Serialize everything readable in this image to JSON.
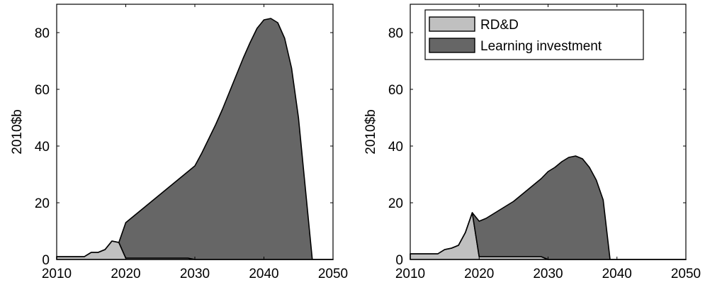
{
  "chart_data": [
    {
      "type": "area",
      "stacked": true,
      "xlim": [
        2010,
        2050
      ],
      "ylim": [
        0,
        90
      ],
      "xticks": [
        2010,
        2020,
        2030,
        2040,
        2050
      ],
      "yticks": [
        0,
        20,
        40,
        60,
        80
      ],
      "xtick_labels": [
        "2010",
        "2020",
        "2030",
        "2040",
        "2050"
      ],
      "ytick_labels": [
        "0",
        "20",
        "40",
        "60",
        "80"
      ],
      "ylabel": "2010$b",
      "xlabel": "",
      "grid": false,
      "legend": null,
      "x": [
        2010,
        2011,
        2012,
        2013,
        2014,
        2015,
        2016,
        2017,
        2018,
        2019,
        2020,
        2021,
        2022,
        2023,
        2024,
        2025,
        2026,
        2027,
        2028,
        2029,
        2030,
        2031,
        2032,
        2033,
        2034,
        2035,
        2036,
        2037,
        2038,
        2039,
        2040,
        2041,
        2042,
        2043,
        2044,
        2045,
        2046,
        2047,
        2048,
        2049,
        2050
      ],
      "series": [
        {
          "name": "RD&D",
          "color": "#c0c0c0",
          "values": [
            1,
            1,
            1,
            1,
            1,
            2.5,
            2.5,
            3.5,
            6.5,
            6,
            0.5,
            0.5,
            0.5,
            0.5,
            0.5,
            0.5,
            0.5,
            0.5,
            0.5,
            0.5,
            0,
            0,
            0,
            0,
            0,
            0,
            0,
            0,
            0,
            0,
            0,
            0,
            0,
            0,
            0,
            0,
            0,
            0,
            0,
            0,
            0
          ]
        },
        {
          "name": "Learning investment",
          "color": "#666666",
          "values": [
            0,
            0,
            0,
            0,
            0,
            0,
            0,
            0,
            0,
            0,
            12.5,
            14.5,
            16.5,
            18.5,
            20.5,
            22.5,
            24.5,
            26.5,
            28.5,
            30.5,
            33,
            37.5,
            42.5,
            47.5,
            53,
            59,
            65,
            71,
            76.5,
            81.5,
            84.5,
            85,
            83.5,
            78,
            67.5,
            50,
            25,
            0,
            0,
            0,
            0
          ]
        }
      ]
    },
    {
      "type": "area",
      "stacked": true,
      "xlim": [
        2010,
        2050
      ],
      "ylim": [
        0,
        90
      ],
      "xticks": [
        2010,
        2020,
        2030,
        2040,
        2050
      ],
      "yticks": [
        0,
        20,
        40,
        60,
        80
      ],
      "xtick_labels": [
        "2010",
        "2020",
        "2030",
        "2040",
        "2050"
      ],
      "ytick_labels": [
        "0",
        "20",
        "40",
        "60",
        "80"
      ],
      "ylabel": "2010$b",
      "xlabel": "",
      "grid": false,
      "legend": {
        "position": "top-right",
        "entries": [
          "RD&D",
          "Learning investment"
        ]
      },
      "x": [
        2010,
        2011,
        2012,
        2013,
        2014,
        2015,
        2016,
        2017,
        2018,
        2019,
        2020,
        2021,
        2022,
        2023,
        2024,
        2025,
        2026,
        2027,
        2028,
        2029,
        2030,
        2031,
        2032,
        2033,
        2034,
        2035,
        2036,
        2037,
        2038,
        2039,
        2040,
        2041,
        2042,
        2043,
        2044,
        2045,
        2046,
        2047,
        2048,
        2049,
        2050
      ],
      "series": [
        {
          "name": "RD&D",
          "color": "#c0c0c0",
          "values": [
            2,
            2,
            2,
            2,
            2,
            3.5,
            4,
            5,
            9.5,
            16.5,
            1,
            1,
            1,
            1,
            1,
            1,
            1,
            1,
            1,
            1,
            0,
            0,
            0,
            0,
            0,
            0,
            0,
            0,
            0,
            0,
            0,
            0,
            0,
            0,
            0,
            0,
            0,
            0,
            0,
            0,
            0
          ]
        },
        {
          "name": "Learning investment",
          "color": "#666666",
          "values": [
            0,
            0,
            0,
            0,
            0,
            0,
            0,
            0,
            0,
            0,
            12.5,
            13.5,
            15,
            16.5,
            18,
            19.5,
            21.5,
            23.5,
            25.5,
            27.5,
            31,
            32.5,
            34.5,
            36,
            36.5,
            35.5,
            32.5,
            28,
            21,
            0,
            0,
            0,
            0,
            0,
            0,
            0,
            0,
            0,
            0,
            0,
            0
          ]
        }
      ]
    }
  ]
}
